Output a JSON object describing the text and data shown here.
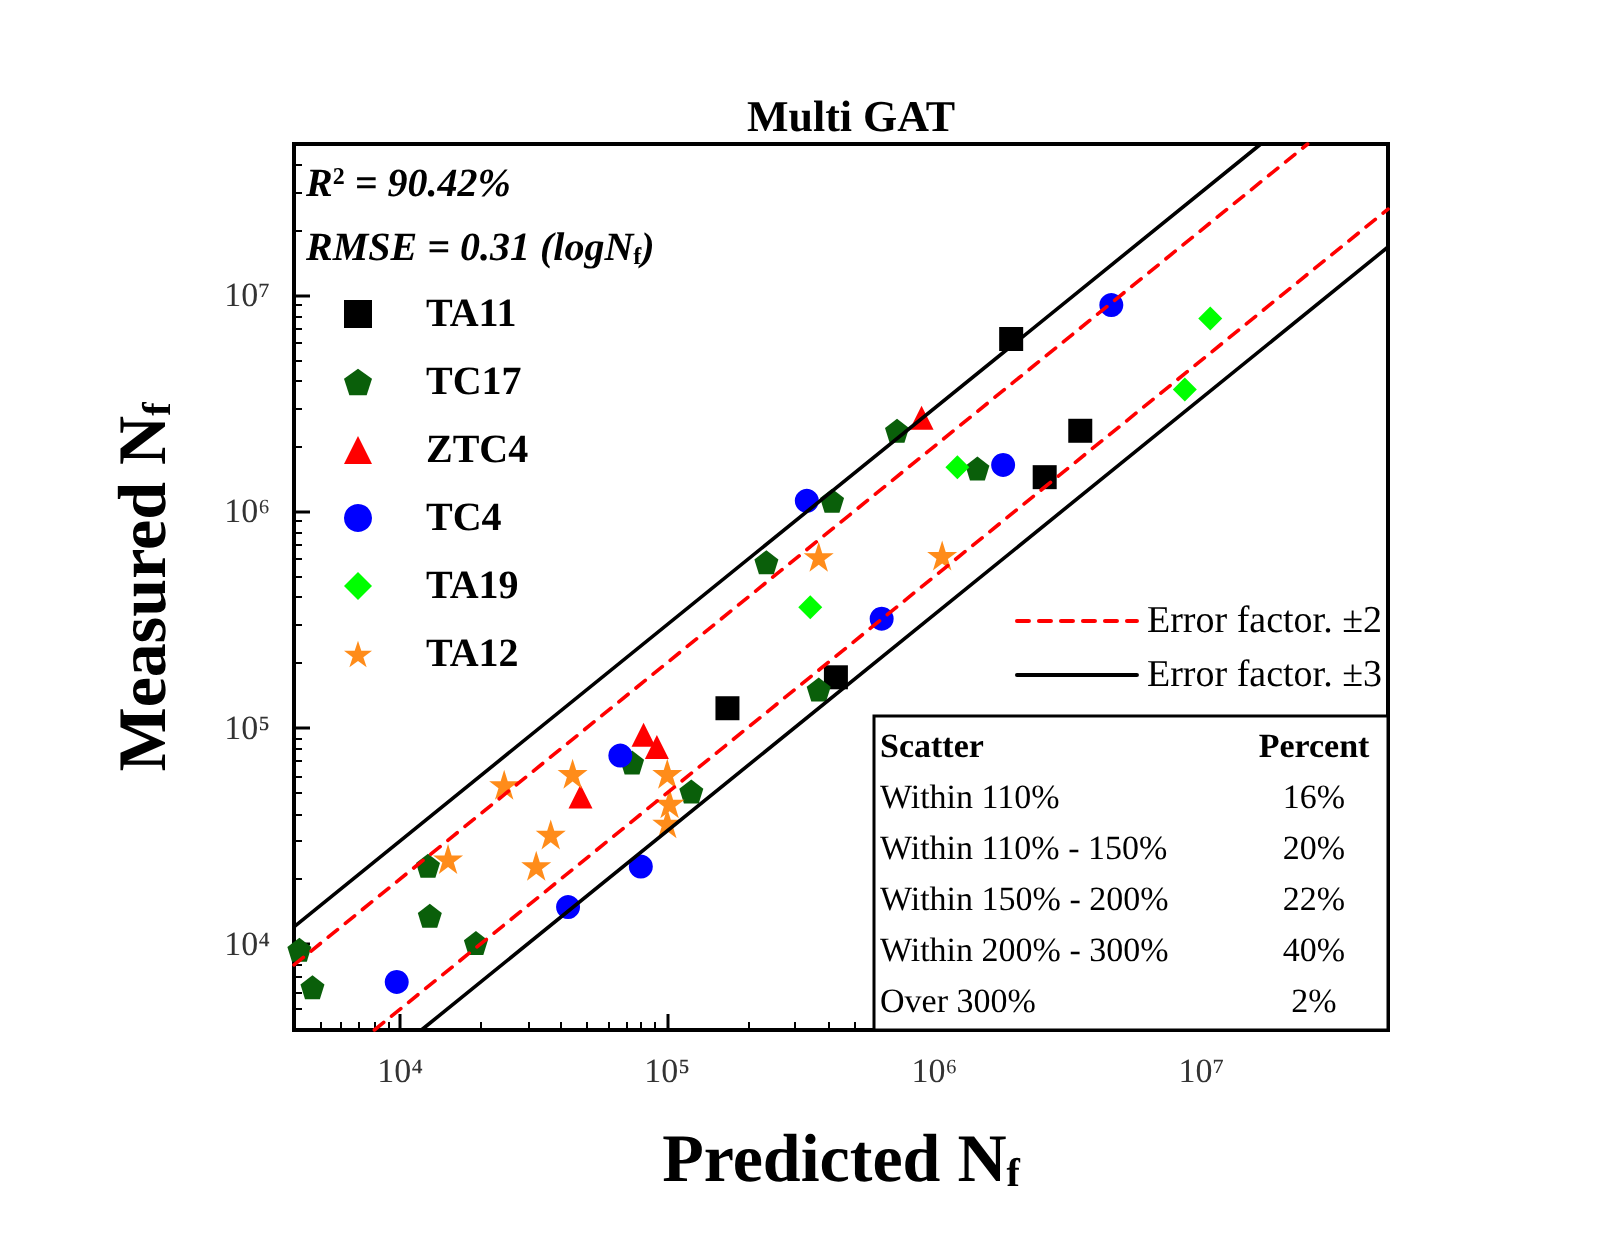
{
  "chart_data": {
    "type": "scatter",
    "title": "Multi GAT",
    "xlabel": "Predicted N$_{f}$",
    "ylabel": "Measured N$_{f}$",
    "log": "xy",
    "grid": false,
    "legend": "top left",
    "xlim": [
      4000,
      50000000
    ],
    "ylim": [
      4000,
      50000000
    ],
    "xticks": [
      {
        "value": 10000,
        "label": "10⁴"
      },
      {
        "value": 100000,
        "label": "10⁵"
      },
      {
        "value": 1000000,
        "label": "10⁶"
      },
      {
        "value": 10000000,
        "label": "10⁷"
      }
    ],
    "yticks": [
      {
        "value": 10000,
        "label": "10⁴"
      },
      {
        "value": 100000,
        "label": "10⁵"
      },
      {
        "value": 1000000,
        "label": "10⁶"
      },
      {
        "value": 10000000,
        "label": "10⁷"
      }
    ],
    "annotations": [
      "R$^{2}$ = 90.42%",
      "RMSE = 0.31 (logN$_{f}$)",
      "Scatter",
      "Percent",
      "Within 110%",
      "16%",
      "Within 110% - 150%",
      "20%",
      "Within 150% - 200%",
      "22%",
      "Within 200% - 300%",
      "40%",
      "Over 300%",
      "2%"
    ],
    "series": [
      {
        "name": "TA11",
        "color": "#000000",
        "marker": "square",
        "x": [
          168000,
          428000,
          1940000,
          3520000,
          2590000
        ],
        "values": [
          123000,
          171000,
          6270000,
          2360000,
          1440000
        ]
      },
      {
        "name": "TC17",
        "color": "#0a5f0a",
        "x": [
          4190,
          4690,
          12700,
          12900,
          19200,
          73800,
          123000,
          235000,
          369000,
          414000,
          725000,
          1450000
        ],
        "values": [
          9400,
          6300,
          23000,
          13500,
          10100,
          69000,
          50700,
          582000,
          150000,
          1120000,
          2360000,
          1580000
        ]
      },
      {
        "name": "ZTC4",
        "color": "#ff0000",
        "marker": "triangle",
        "x": [
          81500,
          91400,
          47300,
          896000
        ],
        "values": [
          92700,
          81500,
          48000,
          2710000
        ]
      },
      {
        "name": "TC4",
        "color": "#0000ff",
        "marker": "circle",
        "x": [
          9700,
          42500,
          79600,
          66700,
          635000,
          333000,
          4600000,
          1810000
        ],
        "values": [
          6670,
          14800,
          22800,
          74300,
          319000,
          1120000,
          9000000,
          1640000
        ]
      },
      {
        "name": "TA19",
        "color": "#00ff00",
        "marker": "diamond",
        "x": [
          343000,
          1220000,
          10800000,
          8670000
        ],
        "values": [
          360000,
          1600000,
          7800000,
          3660000
        ]
      },
      {
        "name": "TA12",
        "color": "#ff8c1a",
        "marker": "star",
        "x": [
          24500,
          44200,
          15100,
          36600,
          32300,
          100000,
          102000,
          100000,
          369000,
          1070000
        ],
        "values": [
          54500,
          61300,
          24700,
          32100,
          23000,
          61300,
          44700,
          36100,
          617000,
          625000
        ]
      },
      {
        "name": "Error factor. ±2",
        "type": "line",
        "color": "#ff0000",
        "line_style": "dashed",
        "marker": "none",
        "x": [
          4000,
          25000000
        ],
        "values": [
          8000,
          50000000
        ]
      },
      {
        "type": "line",
        "color": "#ff0000",
        "line_style": "dashed",
        "marker": "none",
        "x": [
          8000,
          50000000
        ],
        "values": [
          4000,
          25000000
        ]
      },
      {
        "name": "Error factor. ±3",
        "type": "line",
        "color": "#000000",
        "line_style": "solid",
        "marker": "none",
        "x": [
          4000,
          16700000
        ],
        "values": [
          12000,
          50000000
        ]
      },
      {
        "type": "line",
        "color": "#000000",
        "line_style": "solid",
        "marker": "none",
        "x": [
          12000,
          50000000
        ],
        "values": [
          4000,
          16700000
        ]
      }
    ]
  }
}
